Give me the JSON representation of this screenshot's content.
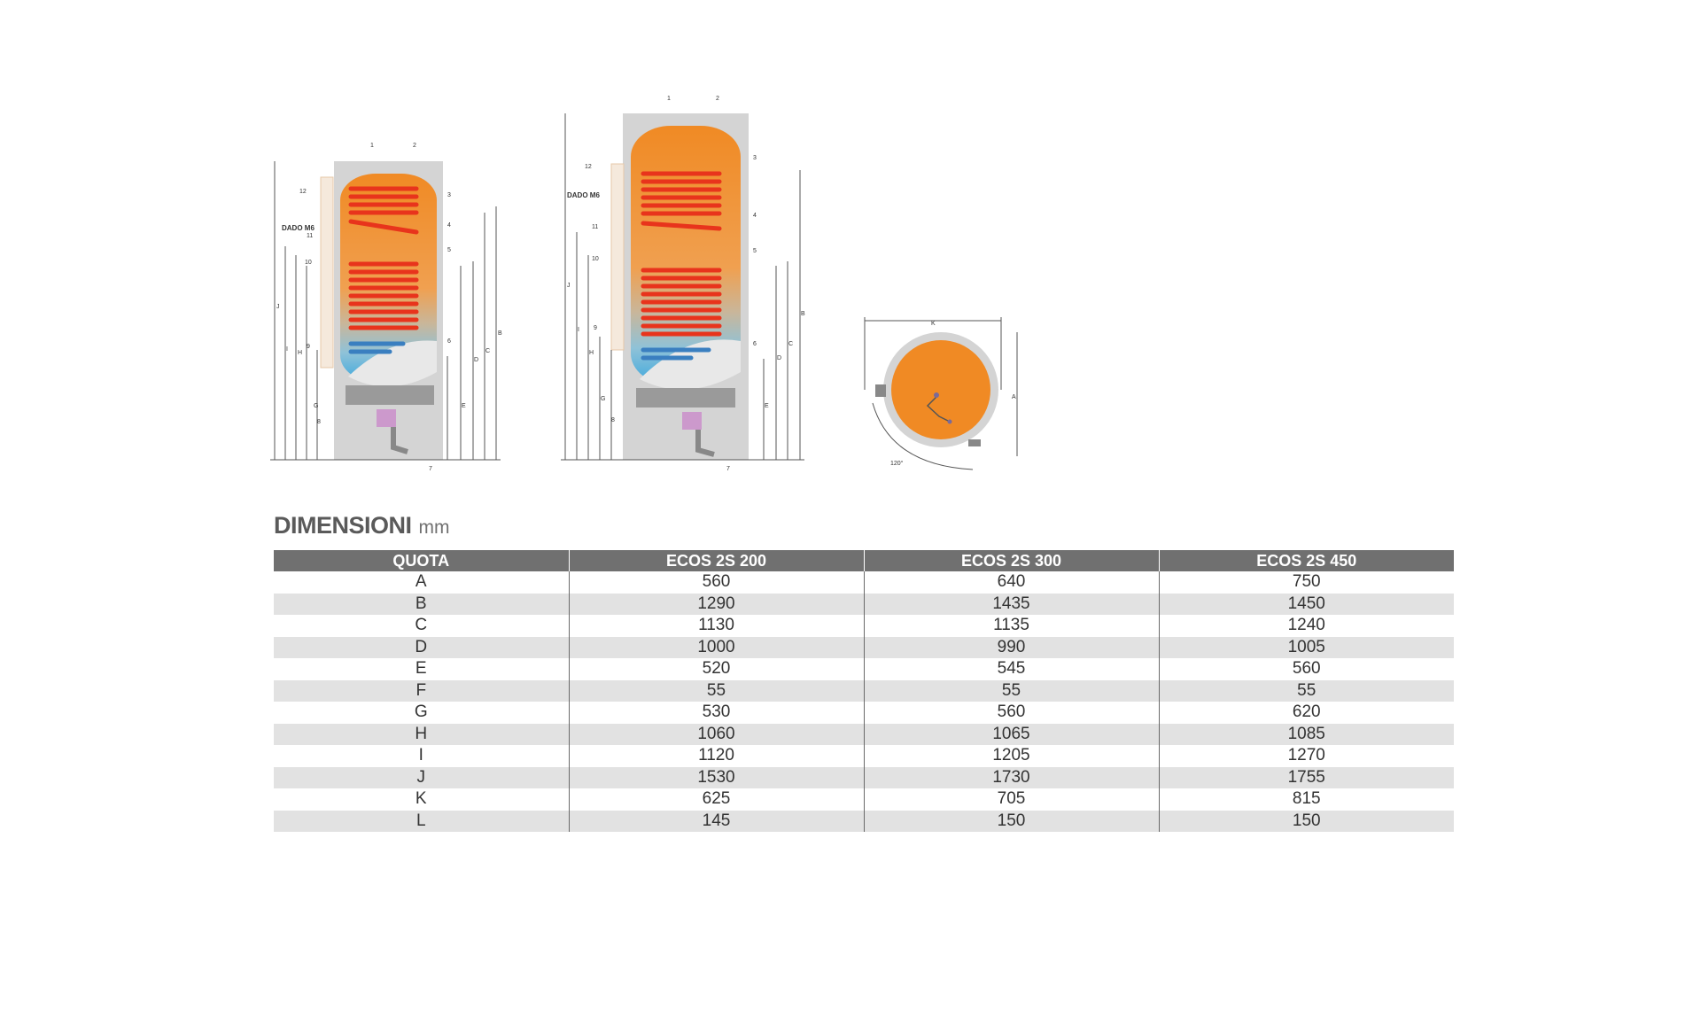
{
  "diagram": {
    "callouts": [
      "1",
      "2",
      "3",
      "4",
      "5",
      "6",
      "7",
      "8",
      "9",
      "10",
      "11",
      "12"
    ],
    "dim_letters": [
      "A",
      "B",
      "C",
      "D",
      "E",
      "F",
      "G",
      "H",
      "I",
      "J",
      "K"
    ],
    "nut_label": "DADO M6",
    "angle_label": "120°",
    "colors": {
      "tank_orange": "#f08a24",
      "coil_red": "#e8341c",
      "jacket_grey": "#d2d2d2",
      "cold_blue": "#3fa9dd"
    }
  },
  "section": {
    "title": "DIMENSIONI",
    "unit": "mm"
  },
  "table": {
    "headers": [
      "QUOTA",
      "ECOS 2S 200",
      "ECOS 2S 300",
      "ECOS 2S 450"
    ],
    "rows": [
      [
        "A",
        "560",
        "640",
        "750"
      ],
      [
        "B",
        "1290",
        "1435",
        "1450"
      ],
      [
        "C",
        "1130",
        "1135",
        "1240"
      ],
      [
        "D",
        "1000",
        "990",
        "1005"
      ],
      [
        "E",
        "520",
        "545",
        "560"
      ],
      [
        "F",
        "55",
        "55",
        "55"
      ],
      [
        "G",
        "530",
        "560",
        "620"
      ],
      [
        "H",
        "1060",
        "1065",
        "1085"
      ],
      [
        "I",
        "1120",
        "1205",
        "1270"
      ],
      [
        "J",
        "1530",
        "1730",
        "1755"
      ],
      [
        "K",
        "625",
        "705",
        "815"
      ],
      [
        "L",
        "145",
        "150",
        "150"
      ]
    ]
  }
}
